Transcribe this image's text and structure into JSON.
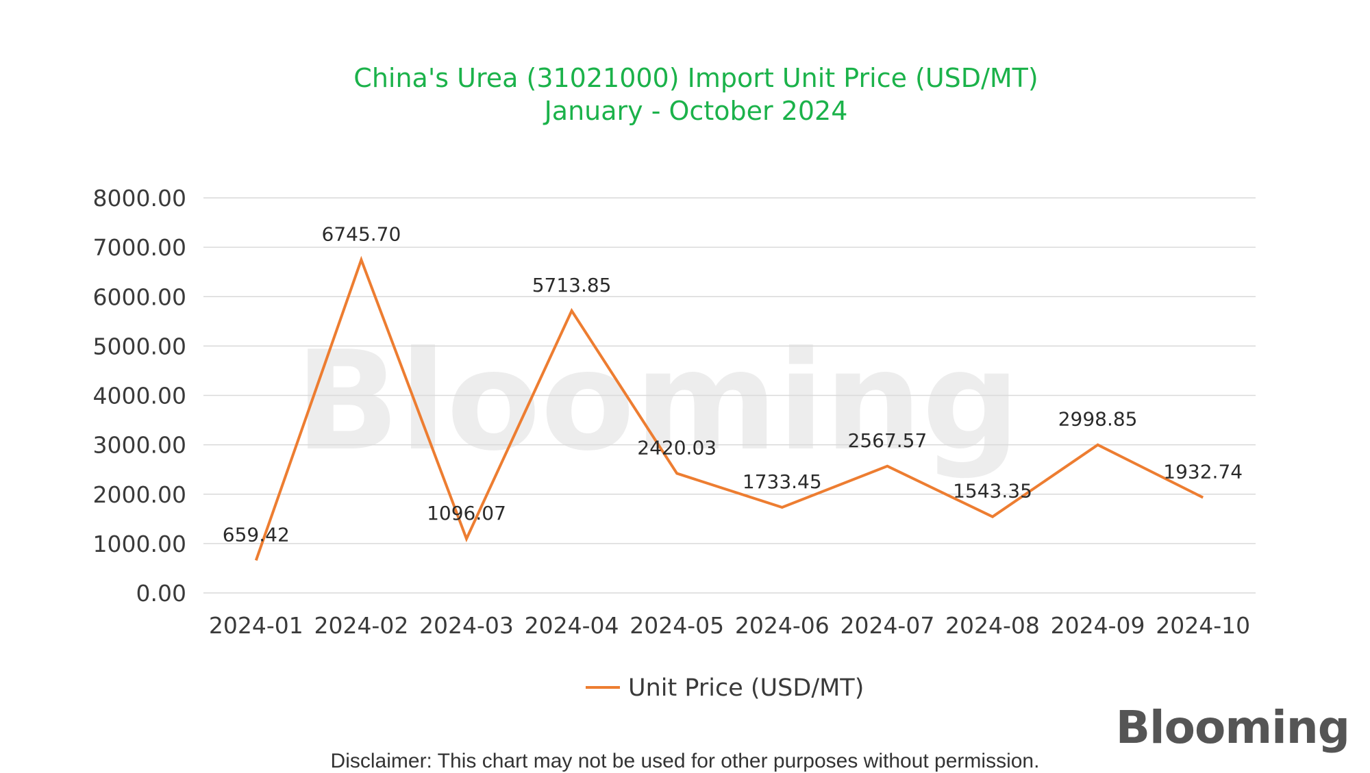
{
  "chart_data": {
    "type": "line",
    "title": [
      "China's Urea (31021000) Import Unit Price (USD/MT)",
      "January - October 2024"
    ],
    "categories": [
      "2024-01",
      "2024-02",
      "2024-03",
      "2024-04",
      "2024-05",
      "2024-06",
      "2024-07",
      "2024-08",
      "2024-09",
      "2024-10"
    ],
    "series": [
      {
        "name": "Unit Price (USD/MT)",
        "values": [
          659.42,
          6745.7,
          1096.07,
          5713.85,
          2420.03,
          1733.45,
          2567.57,
          1543.35,
          2998.85,
          1932.74
        ],
        "labels": [
          "659.42",
          "6745.70",
          "1096.07",
          "5713.85",
          "2420.03",
          "1733.45",
          "2567.57",
          "1543.35",
          "2998.85",
          "1932.74"
        ],
        "color": "#ed7d31"
      }
    ],
    "y_ticks": [
      "0.00",
      "1000.00",
      "2000.00",
      "3000.00",
      "4000.00",
      "5000.00",
      "6000.00",
      "7000.00",
      "8000.00"
    ],
    "ylim": [
      0,
      8000
    ],
    "grid": true,
    "legend": "bottom"
  },
  "watermark": "Blooming",
  "logo": "Blooming",
  "disclaimer": "Disclaimer: This chart may not be used for other purposes without permission.",
  "colors": {
    "title": "#1bb24a",
    "line": "#ed7d31",
    "grid": "#d9d9d9"
  }
}
